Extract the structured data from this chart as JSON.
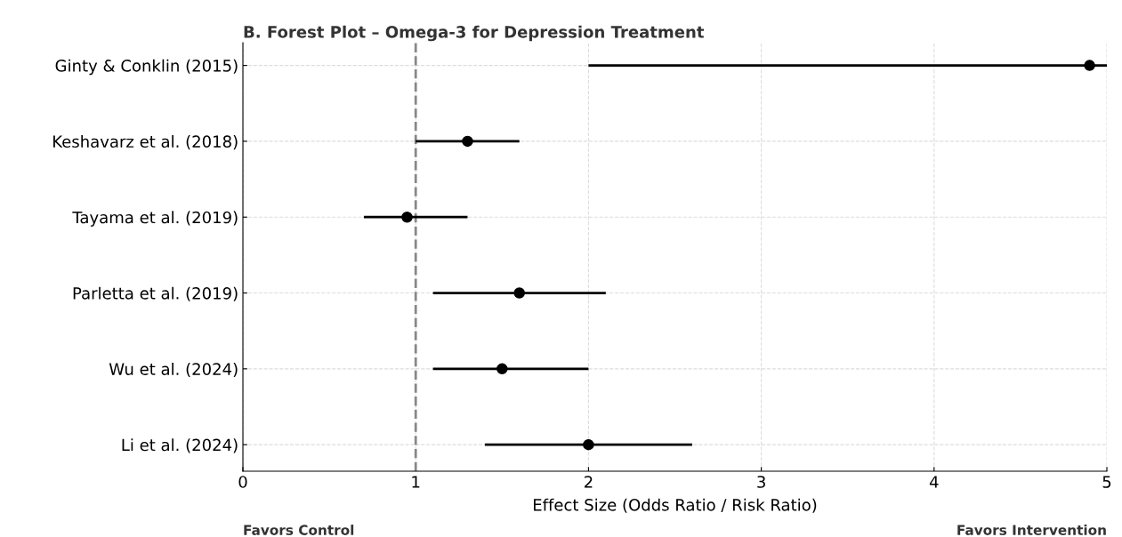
{
  "chart_data": {
    "type": "scatter",
    "orientation": "horizontal",
    "title": "B. Forest Plot – Omega-3 for Depression Treatment",
    "xlabel": "Effect Size (Odds Ratio / Risk Ratio)",
    "categories": [
      "Ginty & Conklin (2015)",
      "Keshavarz et al. (2018)",
      "Tayama et al. (2019)",
      "Parletta et al. (2019)",
      "Wu et al. (2024)",
      "Li et al. (2024)"
    ],
    "color": "#000000",
    "values": [
      4.9,
      1.3,
      0.95,
      1.6,
      1.5,
      2.0
    ],
    "errors": [
      [
        2.0,
        5.0
      ],
      [
        1.0,
        1.6
      ],
      [
        0.7,
        1.3
      ],
      [
        1.1,
        2.1
      ],
      [
        1.1,
        2.0
      ],
      [
        1.4,
        2.6
      ]
    ],
    "xlim": [
      0,
      5
    ],
    "xticks": [
      0,
      1,
      2,
      3,
      4,
      5
    ],
    "ref_lines": [
      {
        "axis": "x",
        "value": 1,
        "color": "#888888",
        "line_style": "dashed"
      }
    ],
    "annotations": [
      "Favors Control",
      "Favors Intervention"
    ],
    "grid": true,
    "marker": "circle"
  }
}
